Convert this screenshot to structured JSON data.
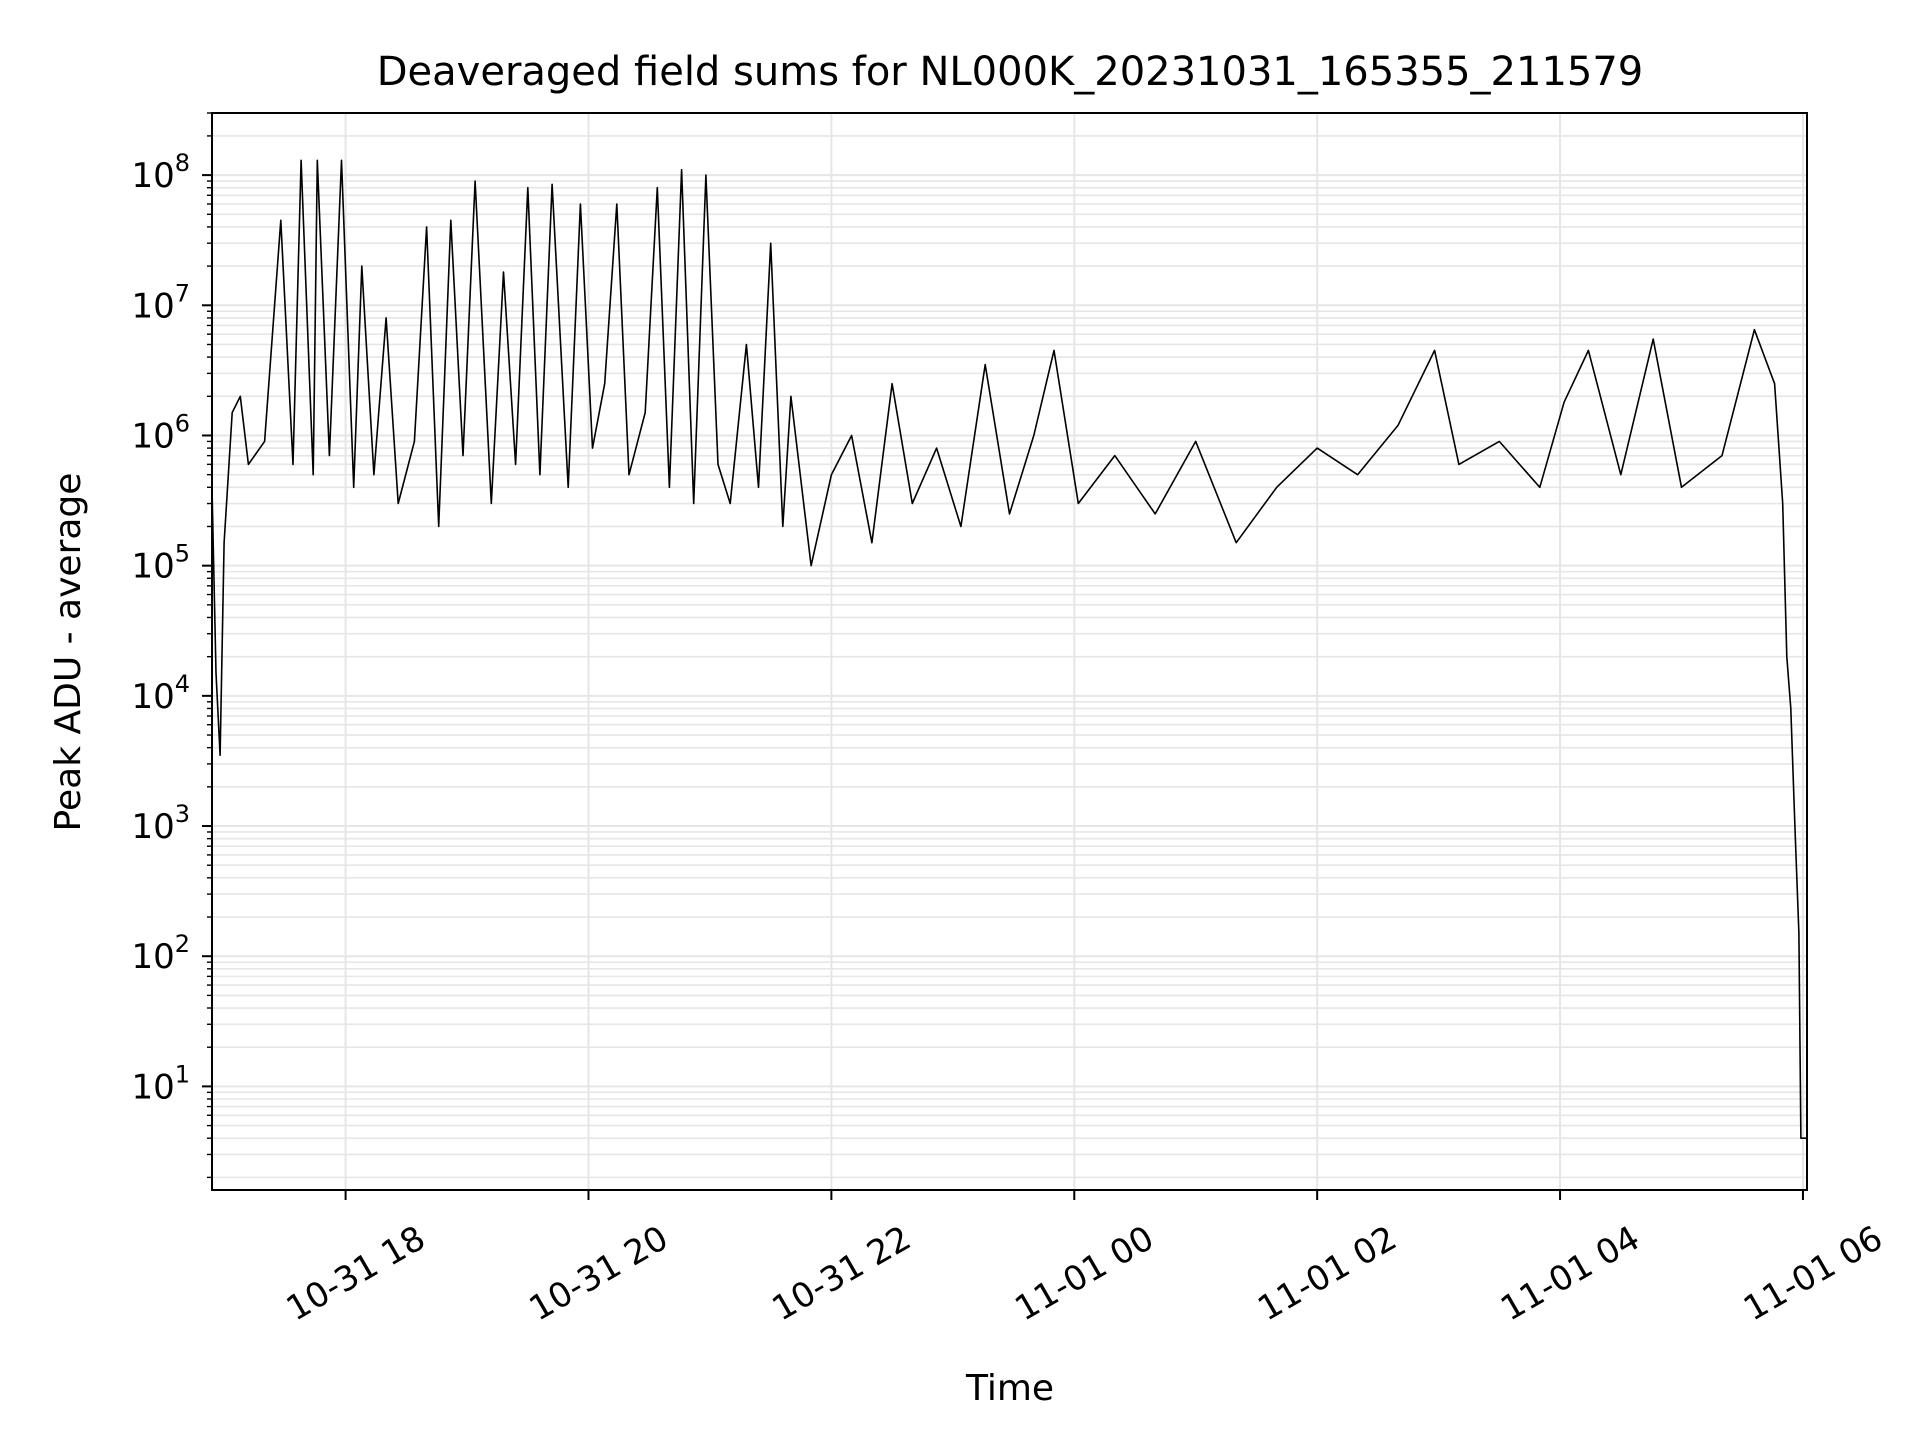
{
  "chart_data": {
    "type": "line",
    "title": "Deaveraged field sums for NL000K_20231031_165355_211579",
    "xlabel": "Time",
    "ylabel": "Peak ADU - average",
    "yscale": "log",
    "ylim": [
      1.6,
      300000000
    ],
    "xlim": [
      "2023-10-31 16:54",
      "2023-11-01 06:02"
    ],
    "grid": true,
    "line_color": "#000000",
    "grid_color": "#e6e6e6",
    "x_ticks": [
      {
        "value": "2023-10-31 18:00",
        "label": "10-31 18"
      },
      {
        "value": "2023-10-31 20:00",
        "label": "10-31 20"
      },
      {
        "value": "2023-10-31 22:00",
        "label": "10-31 22"
      },
      {
        "value": "2023-11-01 00:00",
        "label": "11-01 00"
      },
      {
        "value": "2023-11-01 02:00",
        "label": "11-01 02"
      },
      {
        "value": "2023-11-01 04:00",
        "label": "11-01 04"
      },
      {
        "value": "2023-11-01 06:00",
        "label": "11-01 06"
      }
    ],
    "y_ticks": [
      {
        "value": 10,
        "base": "10",
        "exp": "1"
      },
      {
        "value": 100,
        "base": "10",
        "exp": "2"
      },
      {
        "value": 1000,
        "base": "10",
        "exp": "3"
      },
      {
        "value": 10000,
        "base": "10",
        "exp": "4"
      },
      {
        "value": 100000,
        "base": "10",
        "exp": "5"
      },
      {
        "value": 1000000,
        "base": "10",
        "exp": "6"
      },
      {
        "value": 10000000,
        "base": "10",
        "exp": "7"
      },
      {
        "value": 100000000,
        "base": "10",
        "exp": "8"
      }
    ],
    "series": [
      {
        "points": [
          [
            "2023-10-31 16:54",
            400000
          ],
          [
            "2023-10-31 16:56",
            15000
          ],
          [
            "2023-10-31 16:58",
            3500
          ],
          [
            "2023-10-31 17:00",
            150000
          ],
          [
            "2023-10-31 17:04",
            1500000
          ],
          [
            "2023-10-31 17:08",
            2000000
          ],
          [
            "2023-10-31 17:12",
            600000
          ],
          [
            "2023-10-31 17:20",
            900000
          ],
          [
            "2023-10-31 17:28",
            45000000
          ],
          [
            "2023-10-31 17:34",
            600000
          ],
          [
            "2023-10-31 17:38",
            130000000
          ],
          [
            "2023-10-31 17:44",
            500000
          ],
          [
            "2023-10-31 17:46",
            130000000
          ],
          [
            "2023-10-31 17:52",
            700000
          ],
          [
            "2023-10-31 17:58",
            130000000
          ],
          [
            "2023-10-31 18:04",
            400000
          ],
          [
            "2023-10-31 18:08",
            20000000
          ],
          [
            "2023-10-31 18:14",
            500000
          ],
          [
            "2023-10-31 18:20",
            8000000
          ],
          [
            "2023-10-31 18:26",
            300000
          ],
          [
            "2023-10-31 18:34",
            900000
          ],
          [
            "2023-10-31 18:40",
            40000000
          ],
          [
            "2023-10-31 18:46",
            200000
          ],
          [
            "2023-10-31 18:52",
            45000000
          ],
          [
            "2023-10-31 18:58",
            700000
          ],
          [
            "2023-10-31 19:04",
            90000000
          ],
          [
            "2023-10-31 19:12",
            300000
          ],
          [
            "2023-10-31 19:18",
            18000000
          ],
          [
            "2023-10-31 19:24",
            600000
          ],
          [
            "2023-10-31 19:30",
            80000000
          ],
          [
            "2023-10-31 19:36",
            500000
          ],
          [
            "2023-10-31 19:42",
            85000000
          ],
          [
            "2023-10-31 19:50",
            400000
          ],
          [
            "2023-10-31 19:56",
            60000000
          ],
          [
            "2023-10-31 20:02",
            800000
          ],
          [
            "2023-10-31 20:08",
            2500000
          ],
          [
            "2023-10-31 20:14",
            60000000
          ],
          [
            "2023-10-31 20:20",
            500000
          ],
          [
            "2023-10-31 20:28",
            1500000
          ],
          [
            "2023-10-31 20:34",
            80000000
          ],
          [
            "2023-10-31 20:40",
            400000
          ],
          [
            "2023-10-31 20:46",
            110000000
          ],
          [
            "2023-10-31 20:52",
            300000
          ],
          [
            "2023-10-31 20:58",
            100000000
          ],
          [
            "2023-10-31 21:04",
            600000
          ],
          [
            "2023-10-31 21:10",
            300000
          ],
          [
            "2023-10-31 21:18",
            5000000
          ],
          [
            "2023-10-31 21:24",
            400000
          ],
          [
            "2023-10-31 21:30",
            30000000
          ],
          [
            "2023-10-31 21:36",
            200000
          ],
          [
            "2023-10-31 21:40",
            2000000
          ],
          [
            "2023-10-31 21:50",
            100000
          ],
          [
            "2023-10-31 22:00",
            500000
          ],
          [
            "2023-10-31 22:10",
            1000000
          ],
          [
            "2023-10-31 22:20",
            150000
          ],
          [
            "2023-10-31 22:30",
            2500000
          ],
          [
            "2023-10-31 22:40",
            300000
          ],
          [
            "2023-10-31 22:52",
            800000
          ],
          [
            "2023-10-31 23:04",
            200000
          ],
          [
            "2023-10-31 23:16",
            3500000
          ],
          [
            "2023-10-31 23:28",
            250000
          ],
          [
            "2023-10-31 23:40",
            1000000
          ],
          [
            "2023-10-31 23:50",
            4500000
          ],
          [
            "2023-11-01 00:02",
            300000
          ],
          [
            "2023-11-01 00:20",
            700000
          ],
          [
            "2023-11-01 00:40",
            250000
          ],
          [
            "2023-11-01 01:00",
            900000
          ],
          [
            "2023-11-01 01:20",
            150000
          ],
          [
            "2023-11-01 01:40",
            400000
          ],
          [
            "2023-11-01 02:00",
            800000
          ],
          [
            "2023-11-01 02:20",
            500000
          ],
          [
            "2023-11-01 02:40",
            1200000
          ],
          [
            "2023-11-01 02:58",
            4500000
          ],
          [
            "2023-11-01 03:10",
            600000
          ],
          [
            "2023-11-01 03:30",
            900000
          ],
          [
            "2023-11-01 03:50",
            400000
          ],
          [
            "2023-11-01 04:02",
            1800000
          ],
          [
            "2023-11-01 04:14",
            4500000
          ],
          [
            "2023-11-01 04:30",
            500000
          ],
          [
            "2023-11-01 04:46",
            5500000
          ],
          [
            "2023-11-01 05:00",
            400000
          ],
          [
            "2023-11-01 05:20",
            700000
          ],
          [
            "2023-11-01 05:36",
            6500000
          ],
          [
            "2023-11-01 05:46",
            2500000
          ],
          [
            "2023-11-01 05:50",
            300000
          ],
          [
            "2023-11-01 05:52",
            20000
          ],
          [
            "2023-11-01 05:54",
            8000
          ],
          [
            "2023-11-01 05:56",
            1000
          ],
          [
            "2023-11-01 05:58",
            150
          ],
          [
            "2023-11-01 05:59",
            4
          ],
          [
            "2023-11-01 06:02",
            4
          ]
        ]
      }
    ]
  }
}
